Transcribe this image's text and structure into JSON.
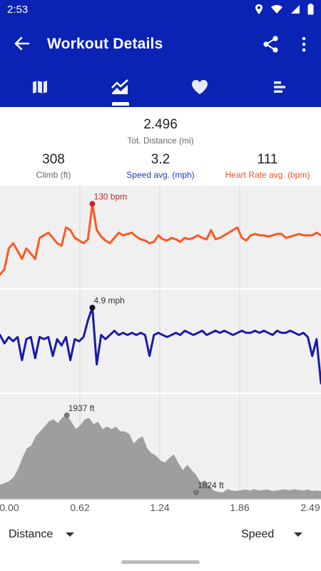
{
  "status_bar": {
    "time": "2:53"
  },
  "app_bar": {
    "title": "Workout Details"
  },
  "tabs": [
    {
      "icon": "map-icon",
      "active": false
    },
    {
      "icon": "trend-chart-icon",
      "active": true
    },
    {
      "icon": "heart-icon",
      "active": false
    },
    {
      "icon": "bar-list-icon",
      "active": false
    }
  ],
  "stats": {
    "distance": {
      "value": "2.496",
      "label": "Tot. Distance (mi)"
    },
    "climb": {
      "value": "308",
      "label": "Climb (ft)"
    },
    "speed": {
      "value": "3.2",
      "label": "Speed avg. (mph)"
    },
    "heart_rate": {
      "value": "111",
      "label": "Heart Rate avg. (bpm)"
    }
  },
  "colors": {
    "brand": "#0a23b5",
    "heart_rate": "#ff5722",
    "speed": "#1a1aa8",
    "elevation": "#9e9e9e",
    "speed_label": "#1a3acc",
    "heart_label": "#f4511e"
  },
  "chart_data": [
    {
      "type": "line",
      "series": [
        {
          "name": "Heart Rate",
          "values": [
            76,
            80,
            96,
            100,
            94,
            88,
            96,
            92,
            88,
            104,
            106,
            108,
            104,
            100,
            98,
            112,
            110,
            104,
            102,
            100,
            103,
            130,
            110,
            105,
            102,
            100,
            104,
            108,
            106,
            107,
            108,
            105,
            103,
            102,
            100,
            101,
            106,
            103,
            102,
            104,
            103,
            101,
            104,
            103,
            104,
            106,
            104,
            103,
            110,
            103,
            104,
            106,
            108,
            110,
            112,
            104,
            102,
            106,
            107,
            106,
            106,
            105,
            106,
            107,
            107,
            104,
            105,
            106,
            107,
            106,
            106,
            106,
            108,
            106
          ]
        }
      ],
      "annotations": [
        {
          "label": "130 bpm",
          "value": 130
        }
      ]
    },
    {
      "type": "line",
      "series": [
        {
          "name": "Speed",
          "values": [
            3.6,
            3.2,
            3.5,
            3.3,
            3.5,
            2.4,
            3.4,
            3.5,
            2.5,
            3.5,
            3.4,
            3.5,
            2.6,
            3.4,
            3.1,
            3.5,
            2.4,
            3.4,
            3.3,
            3.5,
            4.3,
            4.9,
            2.2,
            3.6,
            3.4,
            3.6,
            3.8,
            3.6,
            3.7,
            3.6,
            3.7,
            3.6,
            3.7,
            3.6,
            2.6,
            3.6,
            3.7,
            3.6,
            3.5,
            3.6,
            3.7,
            3.6,
            3.8,
            3.7,
            3.6,
            3.7,
            3.8,
            3.6,
            3.7,
            3.8,
            3.7,
            3.8,
            3.7,
            3.6,
            3.7,
            3.8,
            3.7,
            3.7,
            3.8,
            3.7,
            3.8,
            3.7,
            3.6,
            3.8,
            3.7,
            3.7,
            3.8,
            3.7,
            3.6,
            3.7,
            3.5,
            2.6,
            3.4,
            1.3
          ]
        }
      ],
      "annotations": [
        {
          "label": "4.9 mph",
          "value": 4.9
        }
      ]
    },
    {
      "type": "area",
      "series": [
        {
          "name": "Elevation",
          "values": [
            1650,
            1656,
            1664,
            1680,
            1712,
            1760,
            1800,
            1812,
            1850,
            1870,
            1890,
            1912,
            1920,
            1905,
            1928,
            1937,
            1910,
            1880,
            1895,
            1920,
            1926,
            1900,
            1910,
            1880,
            1890,
            1880,
            1890,
            1870,
            1870,
            1860,
            1820,
            1840,
            1850,
            1800,
            1780,
            1770,
            1750,
            1742,
            1760,
            1775,
            1740,
            1710,
            1732,
            1710,
            1690,
            1660,
            1668,
            1645,
            1625,
            1620,
            1618,
            1632,
            1626,
            1624,
            1627,
            1630,
            1626,
            1632,
            1626,
            1628,
            1630,
            1624,
            1626,
            1629,
            1630,
            1627,
            1631,
            1628,
            1626,
            1630,
            1624,
            1626,
            1624
          ]
        }
      ],
      "annotations": [
        {
          "label": "1937 ft",
          "value": 1937
        },
        {
          "label": "1824 ft",
          "value": 1824
        }
      ]
    }
  ],
  "x_axis": {
    "ticks": [
      "0.00",
      "0.62",
      "1.24",
      "1.86",
      "2.49"
    ]
  },
  "bottom_bar": {
    "x_selector": "Distance",
    "y_selector": "Speed"
  }
}
